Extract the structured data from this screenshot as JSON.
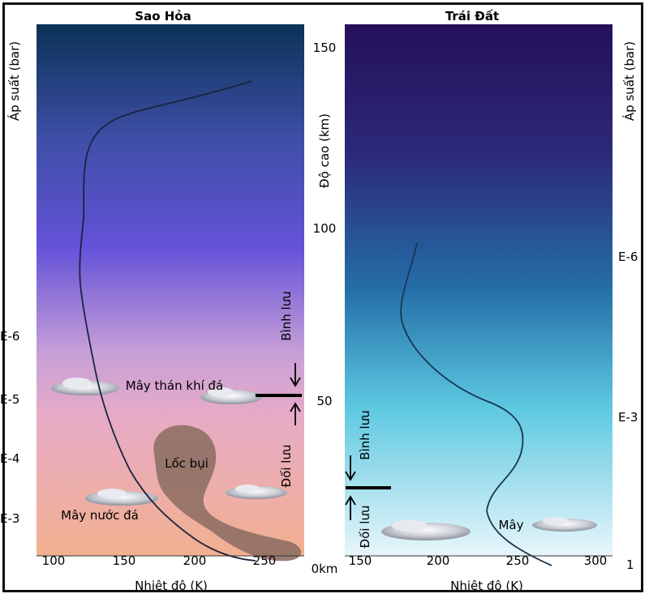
{
  "mars": {
    "title": "Sao Hỏa",
    "x_axis_label": "Nhiệt độ (K)",
    "x_ticks": [
      "100",
      "150",
      "200",
      "250"
    ],
    "pressure_label": "Áp suất (bar)",
    "pressure_ticks": [
      "E-6",
      "E-5",
      "E-4",
      "E-3"
    ],
    "layers": {
      "upper": "Bình lưu",
      "lower": "Đối lưu"
    },
    "labels": {
      "co2_clouds": "Mây thán khí đá",
      "dust_devil": "Lốc bụi",
      "ice_clouds": "Mây nước đá"
    },
    "colors": {
      "top": "#0b3256",
      "mid": "#5a4bd8",
      "pink": "#e5a8c8",
      "bottom": "#f2b08f",
      "curve": "#1a2340",
      "dust": "#8f6f64"
    }
  },
  "altitude_axis": {
    "label": "Độ cao (km)",
    "ticks": [
      "150",
      "100",
      "50",
      "0km"
    ]
  },
  "earth": {
    "title": "Trái Đất",
    "x_axis_label": "Nhiệt độ (K)",
    "x_ticks": [
      "150",
      "200",
      "250",
      "300"
    ],
    "pressure_label": "Áp suất (bar)",
    "pressure_ticks": [
      "E-6",
      "E-3",
      "1"
    ],
    "layers": {
      "upper": "Bình lưu",
      "lower": "Đối lưu"
    },
    "labels": {
      "clouds": "Mây"
    },
    "colors": {
      "top": "#25105a",
      "mid": "#246fa8",
      "lower": "#5cc8e0",
      "bottom": "#e8f6fb",
      "curve": "#1a3550"
    }
  }
}
